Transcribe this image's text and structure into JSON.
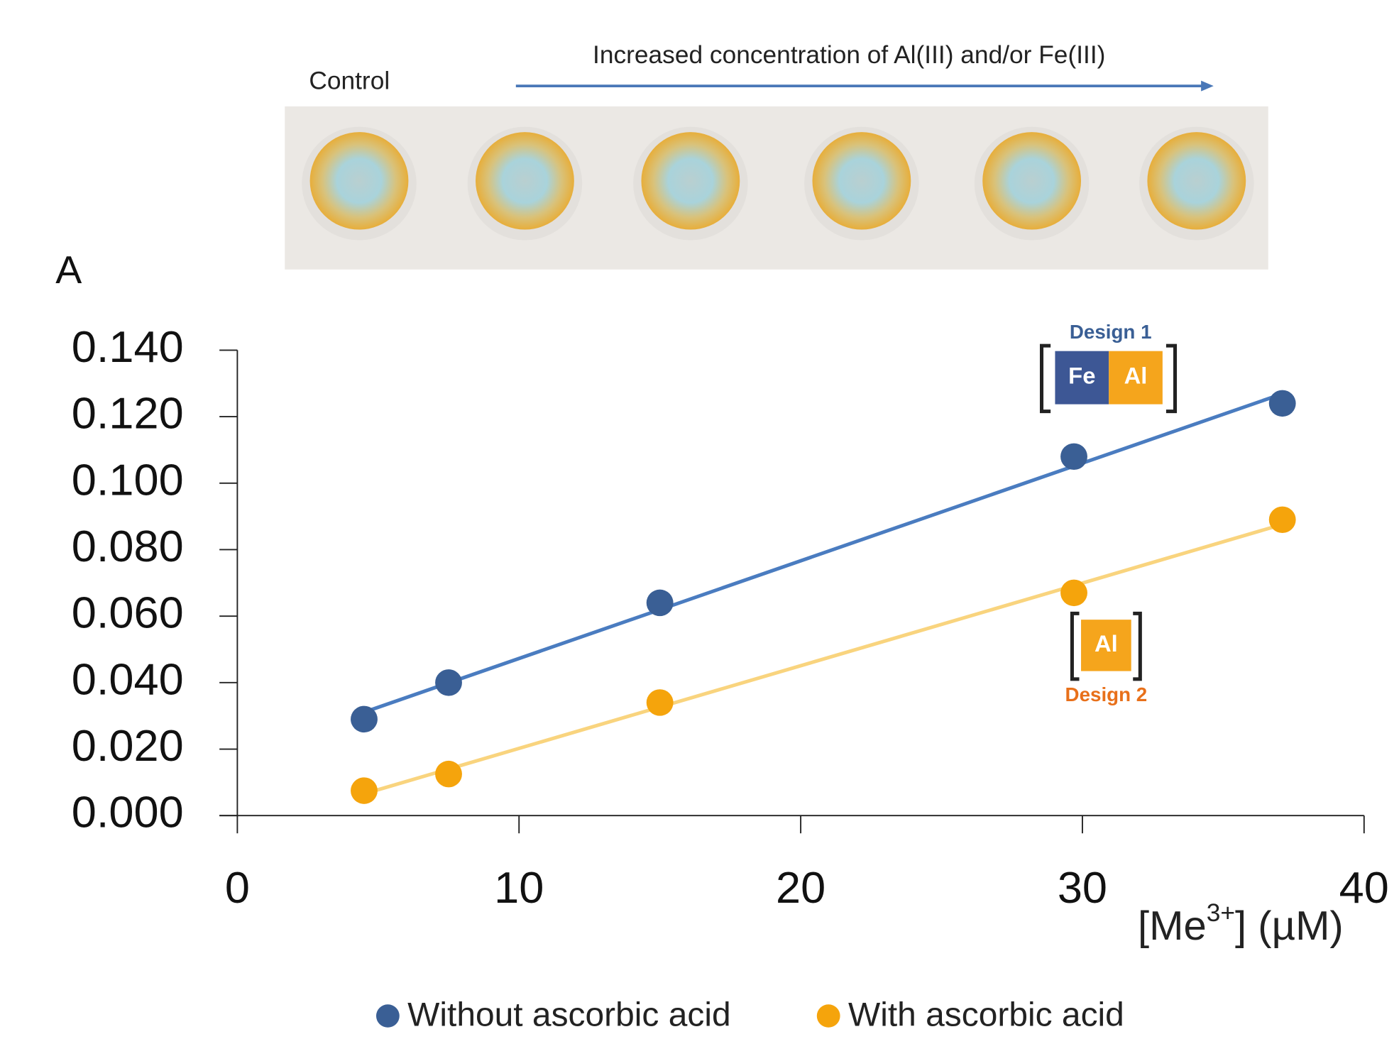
{
  "chart_data": {
    "type": "scatter",
    "panel_label": "A",
    "photo_labels": {
      "control": "Control",
      "arrow": "Increased concentration of Al(III) and/or Fe(III)"
    },
    "x_label": {
      "pre": "[Me",
      "sup": "3+",
      "post": "] (µM)"
    },
    "xlim": [
      0,
      40
    ],
    "xticks": [
      0,
      10,
      20,
      30,
      40
    ],
    "ylim": [
      0,
      0.14
    ],
    "yticks": [
      {
        "value": 0,
        "label": "0.000"
      },
      {
        "value": 0.02,
        "label": "0.020"
      },
      {
        "value": 0.04,
        "label": "0.040"
      },
      {
        "value": 0.06,
        "label": "0.060"
      },
      {
        "value": 0.08,
        "label": "0.080"
      },
      {
        "value": 0.1,
        "label": "0.100"
      },
      {
        "value": 0.12,
        "label": "0.120"
      },
      {
        "value": 0.14,
        "label": "0.140"
      }
    ],
    "trendline": true,
    "series": [
      {
        "name": "Without ascorbic acid",
        "color": "#3a5f95",
        "line_color": "#4a7cc0",
        "x": [
          4.5,
          7.5,
          15,
          29.7,
          37.1
        ],
        "values": [
          0.029,
          0.04,
          0.064,
          0.108,
          0.124
        ]
      },
      {
        "name": "With ascorbic acid",
        "color": "#f5a40c",
        "line_color": "#f9d47e",
        "x": [
          4.5,
          7.5,
          15,
          29.7,
          37.1
        ],
        "values": [
          0.0075,
          0.0125,
          0.034,
          0.067,
          0.089
        ]
      }
    ],
    "annotations": {
      "design1": "Design 1",
      "design2": "Design 2",
      "fe": "Fe",
      "al1": "Al",
      "al2": "Al"
    }
  }
}
